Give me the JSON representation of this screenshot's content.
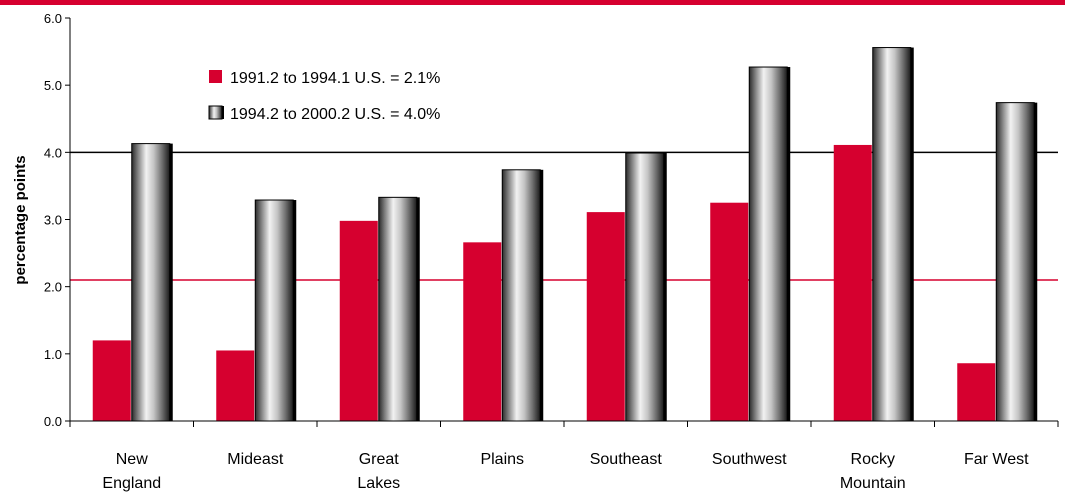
{
  "chart_data": {
    "type": "bar",
    "title": "",
    "xlabel": "",
    "ylabel": "percentage points",
    "ylim": [
      0,
      6
    ],
    "yticks": [
      "0.0",
      "1.0",
      "2.0",
      "3.0",
      "4.0",
      "5.0",
      "6.0"
    ],
    "categories": [
      [
        "New",
        "England"
      ],
      [
        "Mideast"
      ],
      [
        "Great",
        "Lakes"
      ],
      [
        "Plains"
      ],
      [
        "Southeast"
      ],
      [
        "Southwest"
      ],
      [
        "Rocky",
        "Mountain"
      ],
      [
        "Far West"
      ]
    ],
    "series": [
      {
        "name": "1991.2 to 1994.1  U.S. = 2.1%",
        "values": [
          1.2,
          1.05,
          2.98,
          2.66,
          3.11,
          3.25,
          4.11,
          0.86
        ],
        "reference": 2.1,
        "color": "#d6002f"
      },
      {
        "name": "1994.2 to 2000.2  U.S. = 4.0%",
        "values": [
          4.13,
          3.29,
          3.33,
          3.74,
          3.99,
          5.27,
          5.56,
          4.74
        ],
        "reference": 4.0,
        "color": "gradient-gray"
      }
    ],
    "legend_position": "top-left",
    "grid": false,
    "colors": {
      "accent": "#d6002f",
      "axis": "#000000",
      "reference_line_2": "#000000"
    }
  }
}
